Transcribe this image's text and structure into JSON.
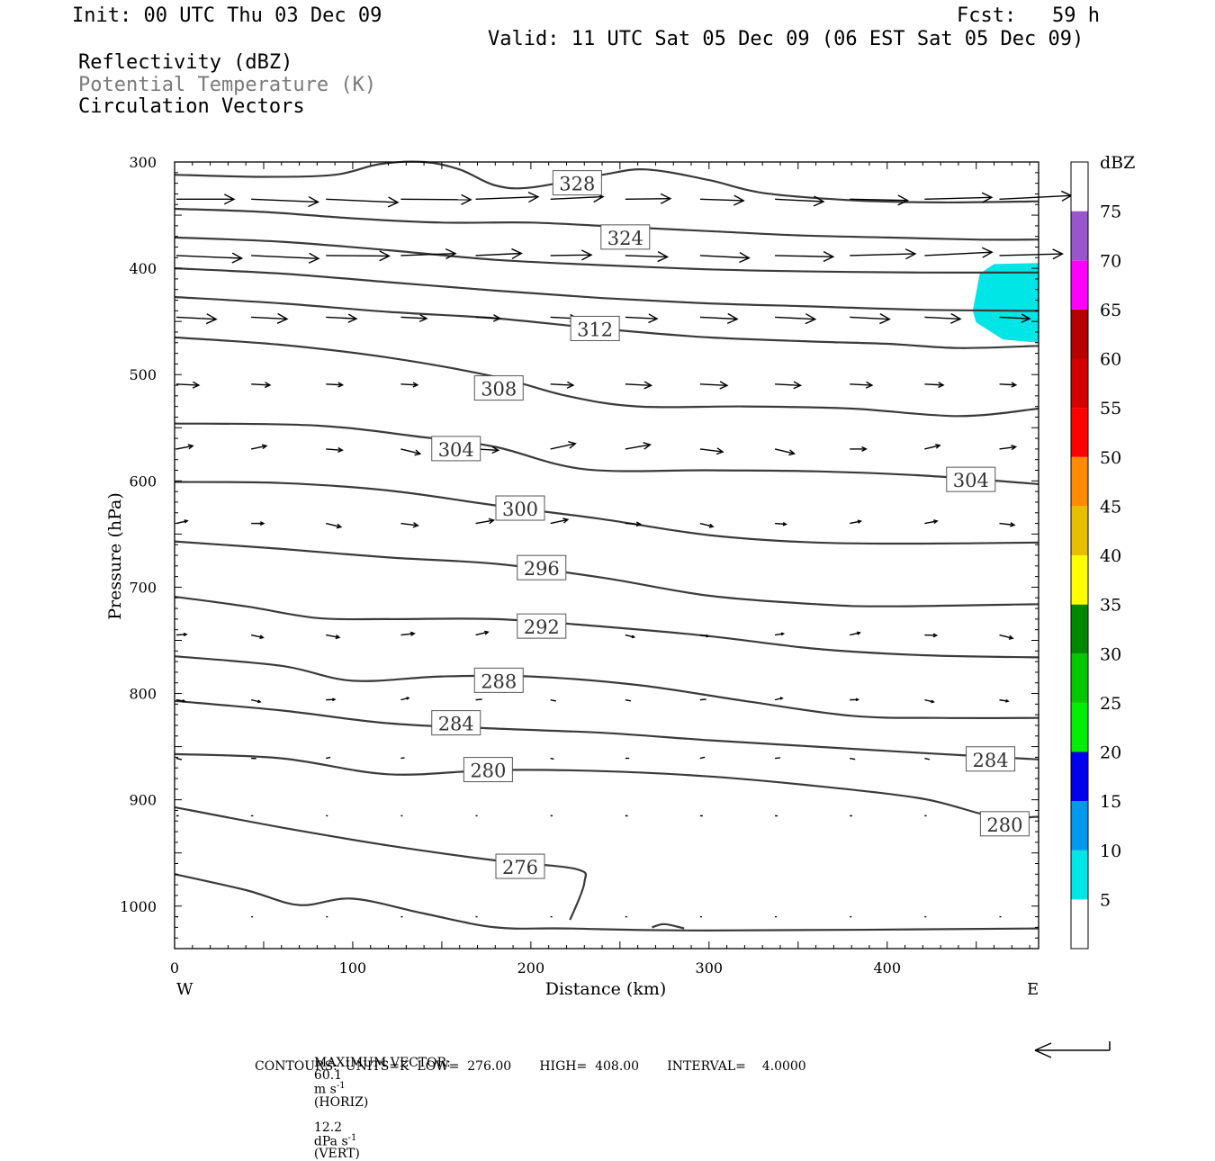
{
  "header": {
    "init": "Init: 00 UTC Thu 03 Dec 09",
    "fcst": "Fcst:   59 h",
    "valid": "Valid: 11 UTC Sat 05 Dec 09 (06 EST Sat 05 Dec 09)",
    "field1": "Reflectivity (dBZ)",
    "field2": "Potential Temperature (K)",
    "field3": "Circulation Vectors"
  },
  "footer": {
    "max_vector_label": "MAXIMUM VECTOR:",
    "horiz_value": "60.1",
    "horiz_unit": "m s",
    "horiz_exp": "-1",
    "horiz_tag": "(HORIZ)",
    "vert_value": "12.2",
    "vert_unit": "dPa s",
    "vert_exp": "-1",
    "vert_tag": "(VERT)",
    "contours": "CONTOURS:  UNITS=K  LOW=  276.00       HIGH=  408.00       INTERVAL=    4.0000"
  },
  "colors": {
    "contour": "#3a3a3a",
    "reflectivity_5": "#00e5e5",
    "frame": "#000000"
  },
  "chart_data": {
    "type": "cross-section",
    "xlabel": "Distance (km)",
    "ylabel": "Pressure (hPa)",
    "xlim": [
      0,
      485
    ],
    "ylim": [
      1040,
      300
    ],
    "x_ticks": [
      0,
      100,
      200,
      300,
      400
    ],
    "y_ticks": [
      300,
      400,
      500,
      600,
      700,
      800,
      900,
      1000
    ],
    "x_end_labels": {
      "left": "W",
      "right": "E"
    },
    "grid": false,
    "colorbar": {
      "title": "dBZ",
      "placement": "right",
      "levels": [
        5,
        10,
        15,
        20,
        25,
        30,
        35,
        40,
        45,
        50,
        55,
        60,
        65,
        70,
        75
      ],
      "colors": [
        "#ffffff",
        "#00e5e5",
        "#0099ee",
        "#0000ee",
        "#00ee00",
        "#00c800",
        "#008800",
        "#ffff00",
        "#e6c000",
        "#ff8c00",
        "#ff0000",
        "#d40000",
        "#b40000",
        "#ff00ff",
        "#9955cc",
        "#ffffff"
      ]
    },
    "theta_contours": [
      {
        "level": 328,
        "label": "328",
        "label_at": [
          226,
          320
        ],
        "points": [
          [
            0,
            312
          ],
          [
            50,
            314
          ],
          [
            90,
            312
          ],
          [
            115,
            302
          ],
          [
            140,
            300
          ],
          [
            160,
            307
          ],
          [
            180,
            322
          ],
          [
            200,
            324
          ],
          [
            240,
            312
          ],
          [
            265,
            307
          ],
          [
            300,
            317
          ],
          [
            330,
            329
          ],
          [
            380,
            336
          ],
          [
            430,
            338
          ],
          [
            485,
            337
          ]
        ]
      },
      {
        "level": 324,
        "label": "324",
        "label_at": [
          253,
          371
        ],
        "points": [
          [
            0,
            344
          ],
          [
            50,
            347
          ],
          [
            100,
            353
          ],
          [
            150,
            357
          ],
          [
            200,
            357
          ],
          [
            250,
            361
          ],
          [
            300,
            365
          ],
          [
            350,
            369
          ],
          [
            400,
            371
          ],
          [
            450,
            373
          ],
          [
            485,
            373
          ]
        ]
      },
      {
        "level": 320,
        "label": "",
        "points": [
          [
            0,
            371
          ],
          [
            60,
            375
          ],
          [
            120,
            383
          ],
          [
            180,
            392
          ],
          [
            240,
            397
          ],
          [
            300,
            401
          ],
          [
            360,
            403
          ],
          [
            420,
            404
          ],
          [
            485,
            404
          ]
        ]
      },
      {
        "level": 316,
        "label": "",
        "points": [
          [
            0,
            400
          ],
          [
            60,
            405
          ],
          [
            120,
            413
          ],
          [
            180,
            421
          ],
          [
            240,
            428
          ],
          [
            300,
            433
          ],
          [
            360,
            436
          ],
          [
            420,
            439
          ],
          [
            485,
            440
          ]
        ]
      },
      {
        "level": 312,
        "label": "312",
        "label_at": [
          236,
          457
        ],
        "points": [
          [
            0,
            427
          ],
          [
            60,
            433
          ],
          [
            120,
            441
          ],
          [
            180,
            447
          ],
          [
            240,
            457
          ],
          [
            300,
            465
          ],
          [
            360,
            469
          ],
          [
            400,
            471
          ],
          [
            440,
            475
          ],
          [
            485,
            473
          ]
        ]
      },
      {
        "level": 308,
        "label": "308",
        "label_at": [
          182,
          513
        ],
        "points": [
          [
            0,
            465
          ],
          [
            60,
            472
          ],
          [
            120,
            484
          ],
          [
            180,
            502
          ],
          [
            220,
            520
          ],
          [
            260,
            530
          ],
          [
            320,
            530
          ],
          [
            380,
            532
          ],
          [
            440,
            539
          ],
          [
            485,
            532
          ]
        ]
      },
      {
        "level": 304,
        "label": "304",
        "label_at": [
          158,
          570
        ],
        "points": [
          [
            0,
            546
          ],
          [
            80,
            548
          ],
          [
            140,
            559
          ],
          [
            180,
            568
          ],
          [
            230,
            589
          ],
          [
            300,
            590
          ],
          [
            360,
            591
          ],
          [
            420,
            595
          ],
          [
            485,
            603
          ]
        ]
      },
      {
        "level": 304,
        "label": "304",
        "label_at": [
          447,
          599
        ],
        "points": []
      },
      {
        "level": 300,
        "label": "300",
        "label_at": [
          194,
          626
        ],
        "points": [
          [
            0,
            601
          ],
          [
            60,
            602
          ],
          [
            120,
            609
          ],
          [
            180,
            623
          ],
          [
            240,
            636
          ],
          [
            300,
            651
          ],
          [
            360,
            658
          ],
          [
            420,
            659
          ],
          [
            485,
            658
          ]
        ]
      },
      {
        "level": 296,
        "label": "296",
        "label_at": [
          206,
          682
        ],
        "points": [
          [
            0,
            657
          ],
          [
            60,
            664
          ],
          [
            120,
            672
          ],
          [
            180,
            678
          ],
          [
            240,
            691
          ],
          [
            300,
            708
          ],
          [
            360,
            716
          ],
          [
            400,
            718
          ],
          [
            485,
            716
          ]
        ]
      },
      {
        "level": 292,
        "label": "292",
        "label_at": [
          206,
          737
        ],
        "points": [
          [
            0,
            709
          ],
          [
            40,
            718
          ],
          [
            80,
            729
          ],
          [
            120,
            730
          ],
          [
            180,
            730
          ],
          [
            240,
            737
          ],
          [
            300,
            746
          ],
          [
            360,
            758
          ],
          [
            420,
            764
          ],
          [
            485,
            766
          ]
        ]
      },
      {
        "level": 288,
        "label": "288",
        "label_at": [
          182,
          788
        ],
        "points": [
          [
            0,
            765
          ],
          [
            60,
            774
          ],
          [
            100,
            788
          ],
          [
            150,
            784
          ],
          [
            200,
            784
          ],
          [
            260,
            792
          ],
          [
            320,
            807
          ],
          [
            380,
            821
          ],
          [
            430,
            823
          ],
          [
            485,
            823
          ]
        ]
      },
      {
        "level": 284,
        "label": "284",
        "label_at": [
          158,
          828
        ],
        "points": [
          [
            0,
            807
          ],
          [
            60,
            816
          ],
          [
            120,
            828
          ],
          [
            180,
            833
          ],
          [
            240,
            837
          ],
          [
            300,
            844
          ],
          [
            360,
            850
          ],
          [
            420,
            856
          ],
          [
            485,
            862
          ]
        ]
      },
      {
        "level": 284,
        "label": "284",
        "label_at": [
          458,
          862
        ],
        "points": []
      },
      {
        "level": 280,
        "label": "280",
        "label_at": [
          176,
          872
        ],
        "points": [
          [
            0,
            857
          ],
          [
            60,
            861
          ],
          [
            120,
            876
          ],
          [
            180,
            872
          ],
          [
            240,
            873
          ],
          [
            300,
            878
          ],
          [
            360,
            887
          ],
          [
            420,
            899
          ],
          [
            460,
            916
          ],
          [
            485,
            916
          ]
        ]
      },
      {
        "level": 280,
        "label": "280",
        "label_at": [
          466,
          923
        ],
        "points": []
      },
      {
        "level": 276,
        "label": "276",
        "label_at": [
          194,
          963
        ],
        "points": [
          [
            0,
            907
          ],
          [
            60,
            926
          ],
          [
            120,
            943
          ],
          [
            180,
            957
          ],
          [
            225,
            965
          ],
          [
            230,
            978
          ],
          [
            222,
            1013
          ]
        ]
      },
      {
        "level": 276,
        "label": "",
        "points": [
          [
            0,
            970
          ],
          [
            40,
            985
          ],
          [
            70,
            999
          ],
          [
            100,
            993
          ],
          [
            140,
            1007
          ],
          [
            180,
            1020
          ],
          [
            220,
            1021
          ],
          [
            300,
            1023
          ],
          [
            485,
            1021
          ]
        ]
      },
      {
        "level": 276,
        "label": "",
        "points": [
          [
            268,
            1020
          ],
          [
            275,
            1017
          ],
          [
            286,
            1021
          ]
        ]
      }
    ],
    "reflectivity_areas": [
      {
        "dbz": 5,
        "polygon": [
          [
            452,
            405
          ],
          [
            460,
            396
          ],
          [
            485,
            395
          ],
          [
            485,
            470
          ],
          [
            465,
            467
          ],
          [
            450,
            451
          ],
          [
            448,
            440
          ]
        ]
      }
    ],
    "vector_levels_hPa": [
      335,
      388,
      446,
      509,
      570,
      640,
      745,
      806,
      861,
      915,
      1010
    ],
    "max_vector": {
      "horizontal": 60.1,
      "vertical": 12.2
    }
  }
}
